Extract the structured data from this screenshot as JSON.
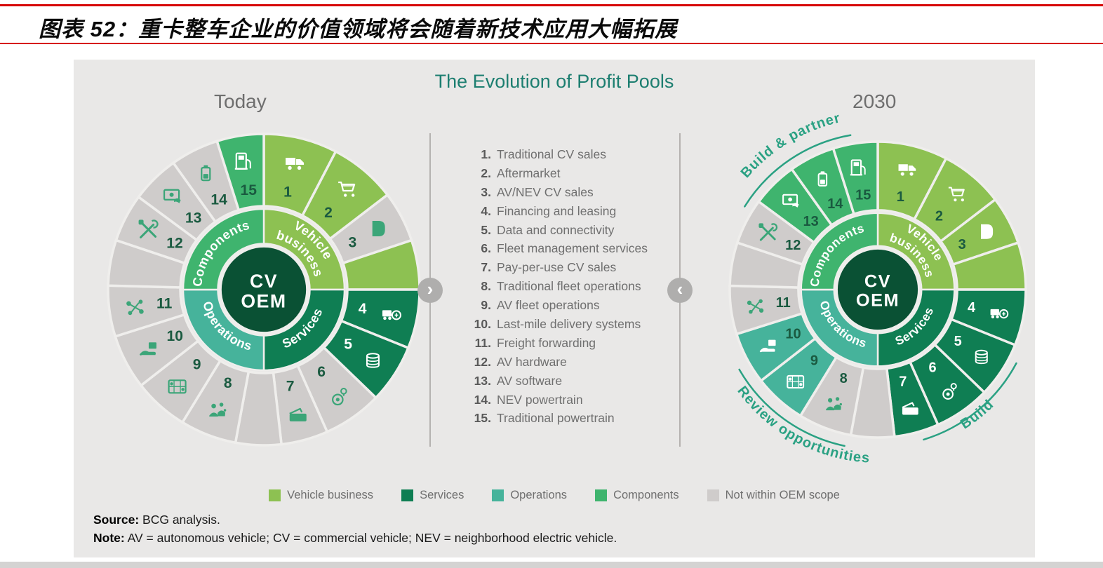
{
  "header": {
    "title": "图表 52：重卡整车企业的价值领域将会随着新技术应用大幅拓展",
    "rule_color": "#D60000"
  },
  "figure": {
    "title": "The Evolution of Profit Pools",
    "today_label": "Today",
    "future_label": "2030",
    "center": {
      "line1": "CV",
      "line2": "OEM"
    },
    "arrows": {
      "left": "›",
      "right": "‹"
    },
    "quadrant_labels": {
      "vehicle_line1": "Vehicle",
      "vehicle_line2": "business",
      "services": "Services",
      "operations": "Operations",
      "components": "Components"
    },
    "quadrants": [
      {
        "id": "vehicle",
        "color_key": "vb"
      },
      {
        "id": "services",
        "color_key": "sv"
      },
      {
        "id": "operations",
        "color_key": "op"
      },
      {
        "id": "components",
        "color_key": "cp"
      }
    ],
    "items": [
      {
        "n": 1,
        "label": "Traditional CV sales",
        "icon": "truck-icon"
      },
      {
        "n": 2,
        "label": "Aftermarket",
        "icon": "cart-icon"
      },
      {
        "n": 3,
        "label": "AV/NEV CV sales",
        "icon": "mudflap-icon"
      },
      {
        "n": 4,
        "label": "Financing and leasing",
        "icon": "financing-icon"
      },
      {
        "n": 5,
        "label": "Data and connectivity",
        "icon": "data-coins-icon"
      },
      {
        "n": 6,
        "label": "Fleet management services",
        "icon": "fleet-gauge-icon"
      },
      {
        "n": 7,
        "label": "Pay-per-use CV sales",
        "icon": "wallet-icon"
      },
      {
        "n": 8,
        "label": "Traditional fleet operations",
        "icon": "fleet-people-icon"
      },
      {
        "n": 9,
        "label": "AV fleet operations",
        "icon": "route-map-icon"
      },
      {
        "n": 10,
        "label": "Last-mile delivery systems",
        "icon": "hand-box-icon"
      },
      {
        "n": 11,
        "label": "Freight forwarding",
        "icon": "network-icon"
      },
      {
        "n": 12,
        "label": "AV hardware",
        "icon": "tools-icon"
      },
      {
        "n": 13,
        "label": "AV software",
        "icon": "screen-pay-icon"
      },
      {
        "n": 14,
        "label": "NEV powertrain",
        "icon": "battery-icon"
      },
      {
        "n": 15,
        "label": "Traditional powertrain",
        "icon": "fuel-pump-icon"
      }
    ],
    "legend": [
      {
        "label": "Vehicle business",
        "color_key": "vb"
      },
      {
        "label": "Services",
        "color_key": "sv"
      },
      {
        "label": "Operations",
        "color_key": "op"
      },
      {
        "label": "Components",
        "color_key": "cp"
      },
      {
        "label": "Not within OEM scope",
        "color_key": "gray"
      }
    ],
    "annotations": {
      "build_partner": "Build & partner",
      "review": "Review opportunities",
      "build": "Build"
    },
    "wheels": {
      "today": {
        "name": "Today",
        "annotations": [],
        "segments": {
          "1": "vb",
          "2": "vb",
          "3": "gray",
          "sA": "vb",
          "4": "sv",
          "5": "sv",
          "6": "gray",
          "7": "gray",
          "sB": "gray",
          "8": "gray",
          "9": "gray",
          "10": "gray",
          "11": "gray",
          "sC": "gray",
          "12": "gray",
          "13": "gray",
          "14": "gray",
          "15": "cp"
        }
      },
      "y2030": {
        "name": "2030",
        "annotations": [
          "build_partner",
          "review",
          "build"
        ],
        "segments": {
          "1": "vb",
          "2": "vb",
          "3": "vb",
          "sA": "vb",
          "4": "sv",
          "5": "sv",
          "6": "sv",
          "7": "sv",
          "sB": "gray",
          "8": "gray",
          "9": "op",
          "10": "op",
          "11": "gray",
          "sC": "gray",
          "12": "gray",
          "13": "cp",
          "14": "cp",
          "15": "cp"
        }
      }
    },
    "colors": {
      "vb": "#8DC152",
      "sv": "#0F7E53",
      "op": "#46B39B",
      "cp": "#3FB46E",
      "gray": "#CFCCCB",
      "center": "#0A5134",
      "gap": "#EFEEEC",
      "annotation": "#2AA183",
      "number": "#1A5A40",
      "icon_green": "#3BA578",
      "title": "#1C7E70",
      "labels": "#6E6E6E",
      "card": "#E9E8E7"
    },
    "source_label": "Source:",
    "source_text": "BCG analysis.",
    "note_label": "Note:",
    "note_text": "AV = autonomous vehicle; CV = commercial vehicle; NEV = neighborhood electric vehicle."
  }
}
